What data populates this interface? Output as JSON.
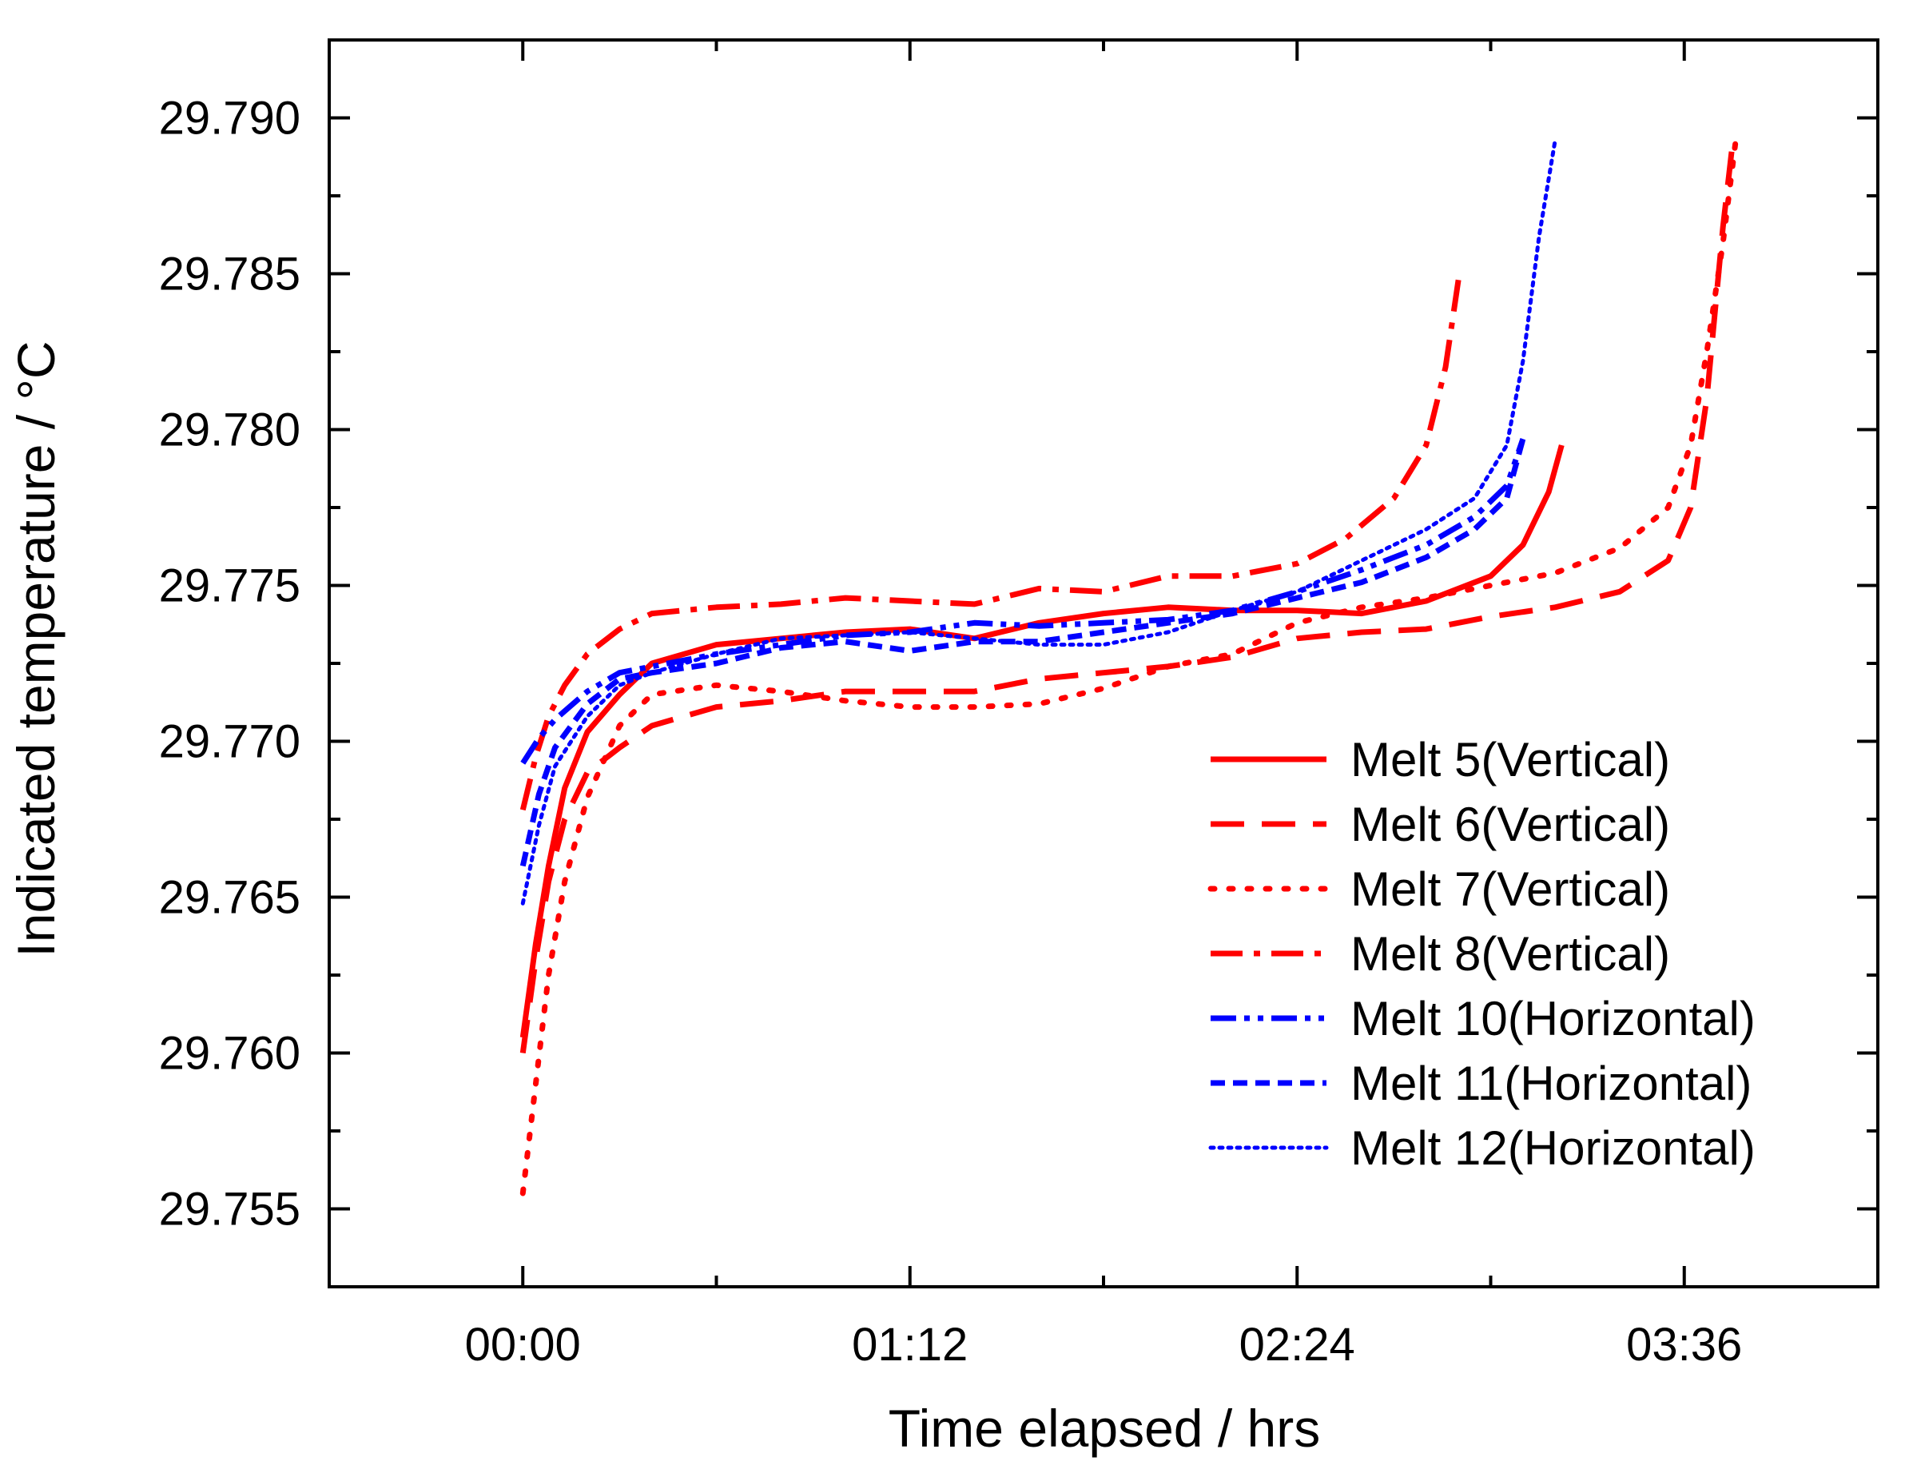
{
  "chart_data": {
    "type": "line",
    "xlabel": "Time elapsed / hrs",
    "ylabel": "Indicated temperature / °C",
    "x_unit": "hours",
    "xlim": [
      -0.6,
      4.2
    ],
    "ylim": [
      29.7525,
      29.7925
    ],
    "x_ticks": [
      0,
      1.2,
      2.4,
      3.6
    ],
    "x_tick_labels": [
      "00:00",
      "01:12",
      "02:24",
      "03:36"
    ],
    "y_ticks": [
      29.755,
      29.76,
      29.765,
      29.77,
      29.775,
      29.78,
      29.785,
      29.79
    ],
    "y_tick_labels": [
      "29.755",
      "29.760",
      "29.765",
      "29.770",
      "29.775",
      "29.780",
      "29.785",
      "29.790"
    ],
    "legend_position": "lower-right",
    "grid": false,
    "series": [
      {
        "name": "Melt 5(Vertical)",
        "color": "#ff0000",
        "style": "solid",
        "points": [
          [
            0,
            29.7605
          ],
          [
            0.04,
            29.7635
          ],
          [
            0.08,
            29.766
          ],
          [
            0.13,
            29.7685
          ],
          [
            0.2,
            29.7703
          ],
          [
            0.3,
            29.7715
          ],
          [
            0.4,
            29.7725
          ],
          [
            0.6,
            29.7731
          ],
          [
            0.8,
            29.7733
          ],
          [
            1.0,
            29.7735
          ],
          [
            1.2,
            29.7736
          ],
          [
            1.4,
            29.7733
          ],
          [
            1.6,
            29.7738
          ],
          [
            1.8,
            29.7741
          ],
          [
            2.0,
            29.7743
          ],
          [
            2.2,
            29.7742
          ],
          [
            2.4,
            29.7742
          ],
          [
            2.6,
            29.7741
          ],
          [
            2.8,
            29.7745
          ],
          [
            3.0,
            29.7753
          ],
          [
            3.1,
            29.7763
          ],
          [
            3.18,
            29.778
          ],
          [
            3.22,
            29.7795
          ]
        ]
      },
      {
        "name": "Melt 6(Vertical)",
        "color": "#ff0000",
        "style": "dash",
        "points": [
          [
            0,
            29.76
          ],
          [
            0.04,
            29.763
          ],
          [
            0.08,
            29.7655
          ],
          [
            0.13,
            29.7675
          ],
          [
            0.2,
            29.769
          ],
          [
            0.3,
            29.7698
          ],
          [
            0.4,
            29.7705
          ],
          [
            0.6,
            29.7711
          ],
          [
            0.8,
            29.7713
          ],
          [
            1.0,
            29.7716
          ],
          [
            1.2,
            29.7716
          ],
          [
            1.4,
            29.7716
          ],
          [
            1.6,
            29.772
          ],
          [
            1.8,
            29.7722
          ],
          [
            2.0,
            29.7724
          ],
          [
            2.2,
            29.7727
          ],
          [
            2.4,
            29.7733
          ],
          [
            2.6,
            29.7735
          ],
          [
            2.8,
            29.7736
          ],
          [
            3.0,
            29.774
          ],
          [
            3.2,
            29.7743
          ],
          [
            3.4,
            29.7748
          ],
          [
            3.55,
            29.7758
          ],
          [
            3.62,
            29.7775
          ],
          [
            3.67,
            29.781
          ],
          [
            3.72,
            29.7865
          ],
          [
            3.75,
            29.7892
          ]
        ]
      },
      {
        "name": "Melt 7(Vertical)",
        "color": "#ff0000",
        "style": "dot",
        "points": [
          [
            0,
            29.7555
          ],
          [
            0.04,
            29.759
          ],
          [
            0.08,
            29.7625
          ],
          [
            0.13,
            29.7655
          ],
          [
            0.2,
            29.7682
          ],
          [
            0.3,
            29.7705
          ],
          [
            0.4,
            29.7715
          ],
          [
            0.6,
            29.7718
          ],
          [
            0.8,
            29.7716
          ],
          [
            1.0,
            29.7713
          ],
          [
            1.2,
            29.7711
          ],
          [
            1.4,
            29.7711
          ],
          [
            1.6,
            29.7712
          ],
          [
            1.8,
            29.7717
          ],
          [
            2.0,
            29.7724
          ],
          [
            2.2,
            29.7728
          ],
          [
            2.4,
            29.7738
          ],
          [
            2.6,
            29.7743
          ],
          [
            2.8,
            29.7746
          ],
          [
            3.0,
            29.775
          ],
          [
            3.2,
            29.7754
          ],
          [
            3.4,
            29.7762
          ],
          [
            3.55,
            29.7775
          ],
          [
            3.62,
            29.7795
          ],
          [
            3.67,
            29.7825
          ],
          [
            3.72,
            29.786
          ],
          [
            3.76,
            29.7893
          ]
        ]
      },
      {
        "name": "Melt 8(Vertical)",
        "color": "#ff0000",
        "style": "dashdot",
        "points": [
          [
            0,
            29.7678
          ],
          [
            0.04,
            29.7695
          ],
          [
            0.08,
            29.7708
          ],
          [
            0.13,
            29.7718
          ],
          [
            0.2,
            29.7728
          ],
          [
            0.3,
            29.7736
          ],
          [
            0.4,
            29.7741
          ],
          [
            0.6,
            29.7743
          ],
          [
            0.8,
            29.7744
          ],
          [
            1.0,
            29.7746
          ],
          [
            1.2,
            29.7745
          ],
          [
            1.4,
            29.7744
          ],
          [
            1.6,
            29.7749
          ],
          [
            1.8,
            29.7748
          ],
          [
            2.0,
            29.7753
          ],
          [
            2.2,
            29.7753
          ],
          [
            2.4,
            29.7757
          ],
          [
            2.55,
            29.7765
          ],
          [
            2.7,
            29.7778
          ],
          [
            2.8,
            29.7795
          ],
          [
            2.86,
            29.782
          ],
          [
            2.9,
            29.7848
          ]
        ]
      },
      {
        "name": "Melt 10(Horizontal)",
        "color": "#0000ff",
        "style": "dashdotdot",
        "points": [
          [
            0,
            29.7693
          ],
          [
            0.05,
            29.7701
          ],
          [
            0.1,
            29.7707
          ],
          [
            0.2,
            29.7716
          ],
          [
            0.3,
            29.7722
          ],
          [
            0.4,
            29.7724
          ],
          [
            0.6,
            29.7728
          ],
          [
            0.8,
            29.7731
          ],
          [
            1.0,
            29.7734
          ],
          [
            1.2,
            29.7735
          ],
          [
            1.4,
            29.7738
          ],
          [
            1.6,
            29.7737
          ],
          [
            1.8,
            29.7738
          ],
          [
            2.0,
            29.7739
          ],
          [
            2.2,
            29.7742
          ],
          [
            2.4,
            29.7748
          ],
          [
            2.6,
            29.7755
          ],
          [
            2.8,
            29.7763
          ],
          [
            2.95,
            29.7772
          ],
          [
            3.05,
            29.7782
          ],
          [
            3.1,
            29.7797
          ]
        ]
      },
      {
        "name": "Melt 11(Horizontal)",
        "color": "#0000ff",
        "style": "shortdash",
        "points": [
          [
            0,
            29.766
          ],
          [
            0.05,
            29.7683
          ],
          [
            0.1,
            29.7698
          ],
          [
            0.2,
            29.7712
          ],
          [
            0.3,
            29.772
          ],
          [
            0.4,
            29.7722
          ],
          [
            0.6,
            29.7725
          ],
          [
            0.8,
            29.773
          ],
          [
            1.0,
            29.7732
          ],
          [
            1.2,
            29.7729
          ],
          [
            1.4,
            29.7732
          ],
          [
            1.6,
            29.7732
          ],
          [
            1.8,
            29.7735
          ],
          [
            2.0,
            29.7738
          ],
          [
            2.2,
            29.7741
          ],
          [
            2.4,
            29.7746
          ],
          [
            2.6,
            29.7751
          ],
          [
            2.8,
            29.7759
          ],
          [
            2.95,
            29.7768
          ],
          [
            3.05,
            29.7778
          ],
          [
            3.1,
            29.7797
          ]
        ]
      },
      {
        "name": "Melt 12(Horizontal)",
        "color": "#0000ff",
        "style": "finedot",
        "points": [
          [
            0,
            29.7648
          ],
          [
            0.05,
            29.7673
          ],
          [
            0.1,
            29.7692
          ],
          [
            0.2,
            29.7708
          ],
          [
            0.3,
            29.7718
          ],
          [
            0.4,
            29.7722
          ],
          [
            0.6,
            29.7728
          ],
          [
            0.8,
            29.7733
          ],
          [
            1.0,
            29.7734
          ],
          [
            1.2,
            29.7735
          ],
          [
            1.4,
            29.7733
          ],
          [
            1.6,
            29.7731
          ],
          [
            1.8,
            29.7731
          ],
          [
            2.0,
            29.7735
          ],
          [
            2.2,
            29.7742
          ],
          [
            2.4,
            29.7748
          ],
          [
            2.6,
            29.7758
          ],
          [
            2.8,
            29.7768
          ],
          [
            2.95,
            29.7778
          ],
          [
            3.05,
            29.7795
          ],
          [
            3.1,
            29.7822
          ],
          [
            3.15,
            29.7862
          ],
          [
            3.2,
            29.7893
          ]
        ]
      }
    ]
  }
}
